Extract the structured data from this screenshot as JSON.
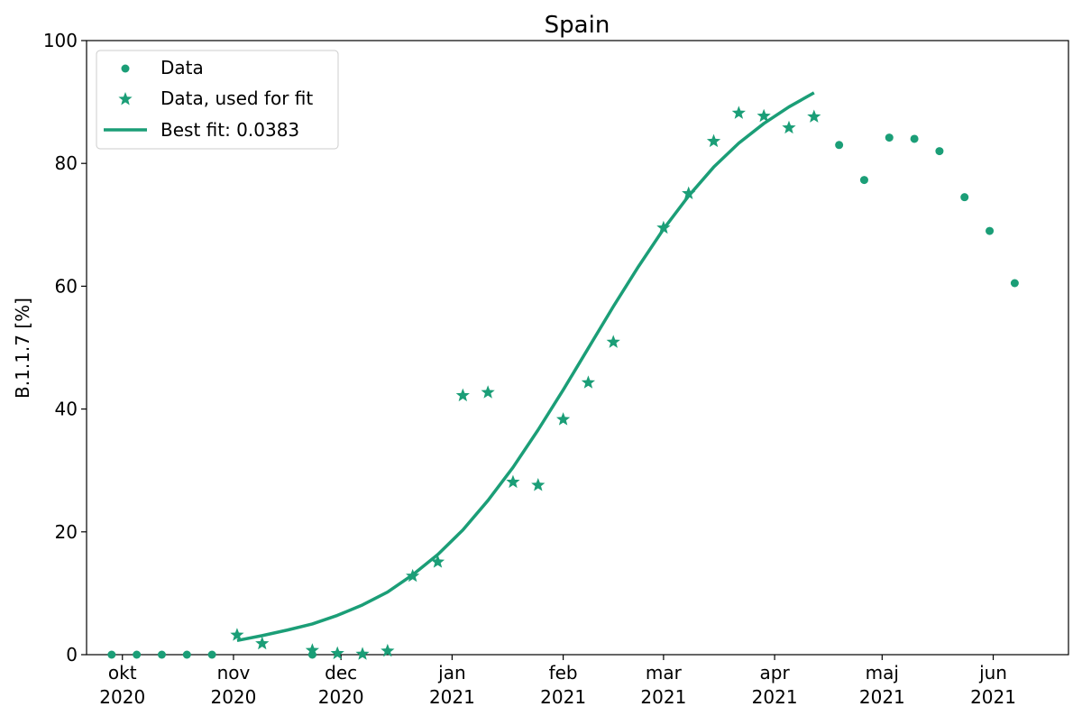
{
  "chart_data": {
    "type": "scatter",
    "title": "Spain",
    "xlabel": "",
    "ylabel": "B.1.1.7 [%]",
    "ylim": [
      0,
      100
    ],
    "xlim": [
      "2020-09-21",
      "2021-06-22"
    ],
    "grid": false,
    "legend_position": "top-left",
    "color": "#1b9e77",
    "x_ticks": [
      {
        "date": "2020-10-01",
        "line1": "okt",
        "line2": "2020"
      },
      {
        "date": "2020-11-01",
        "line1": "nov",
        "line2": "2020"
      },
      {
        "date": "2020-12-01",
        "line1": "dec",
        "line2": "2020"
      },
      {
        "date": "2021-01-01",
        "line1": "jan",
        "line2": "2021"
      },
      {
        "date": "2021-02-01",
        "line1": "feb",
        "line2": "2021"
      },
      {
        "date": "2021-03-01",
        "line1": "mar",
        "line2": "2021"
      },
      {
        "date": "2021-04-01",
        "line1": "apr",
        "line2": "2021"
      },
      {
        "date": "2021-05-01",
        "line1": "maj",
        "line2": "2021"
      },
      {
        "date": "2021-06-01",
        "line1": "jun",
        "line2": "2021"
      }
    ],
    "y_ticks": [
      0,
      20,
      40,
      60,
      80,
      100
    ],
    "series": [
      {
        "name": "Data",
        "marker": "circle",
        "points": [
          {
            "x": "2020-09-28",
            "y": 0
          },
          {
            "x": "2020-10-05",
            "y": 0
          },
          {
            "x": "2020-10-12",
            "y": 0
          },
          {
            "x": "2020-10-19",
            "y": 0
          },
          {
            "x": "2020-10-26",
            "y": 0
          },
          {
            "x": "2020-11-23",
            "y": 0
          },
          {
            "x": "2021-04-19",
            "y": 83
          },
          {
            "x": "2021-04-26",
            "y": 77.3
          },
          {
            "x": "2021-05-03",
            "y": 84.2
          },
          {
            "x": "2021-05-10",
            "y": 84
          },
          {
            "x": "2021-05-17",
            "y": 82
          },
          {
            "x": "2021-05-24",
            "y": 74.5
          },
          {
            "x": "2021-05-31",
            "y": 69
          },
          {
            "x": "2021-06-07",
            "y": 60.5
          }
        ]
      },
      {
        "name": "Data, used for fit",
        "marker": "star",
        "points": [
          {
            "x": "2020-11-02",
            "y": 3.2
          },
          {
            "x": "2020-11-09",
            "y": 1.8
          },
          {
            "x": "2020-11-23",
            "y": 0.7
          },
          {
            "x": "2020-11-30",
            "y": 0.2
          },
          {
            "x": "2020-12-07",
            "y": 0.1
          },
          {
            "x": "2020-12-14",
            "y": 0.6
          },
          {
            "x": "2020-12-21",
            "y": 12.8
          },
          {
            "x": "2020-12-28",
            "y": 15.1
          },
          {
            "x": "2021-01-04",
            "y": 42.2
          },
          {
            "x": "2021-01-11",
            "y": 42.7
          },
          {
            "x": "2021-01-18",
            "y": 28.1
          },
          {
            "x": "2021-01-25",
            "y": 27.6
          },
          {
            "x": "2021-02-01",
            "y": 38.3
          },
          {
            "x": "2021-02-08",
            "y": 44.3
          },
          {
            "x": "2021-02-15",
            "y": 50.9
          },
          {
            "x": "2021-03-01",
            "y": 69.5
          },
          {
            "x": "2021-03-08",
            "y": 75.1
          },
          {
            "x": "2021-03-15",
            "y": 83.6
          },
          {
            "x": "2021-03-22",
            "y": 88.2
          },
          {
            "x": "2021-03-29",
            "y": 87.7
          },
          {
            "x": "2021-04-05",
            "y": 85.8
          },
          {
            "x": "2021-04-12",
            "y": 87.6
          }
        ]
      },
      {
        "name": "Best fit: 0.0383",
        "marker": "line",
        "points": [
          {
            "x": "2020-11-02",
            "y": 2.3
          },
          {
            "x": "2020-11-09",
            "y": 3.1
          },
          {
            "x": "2020-11-16",
            "y": 4.0
          },
          {
            "x": "2020-11-23",
            "y": 5.0
          },
          {
            "x": "2020-11-30",
            "y": 6.4
          },
          {
            "x": "2020-12-07",
            "y": 8.1
          },
          {
            "x": "2020-12-14",
            "y": 10.2
          },
          {
            "x": "2020-12-21",
            "y": 13.0
          },
          {
            "x": "2020-12-28",
            "y": 16.3
          },
          {
            "x": "2021-01-04",
            "y": 20.3
          },
          {
            "x": "2021-01-11",
            "y": 25.1
          },
          {
            "x": "2021-01-18",
            "y": 30.5
          },
          {
            "x": "2021-01-25",
            "y": 36.6
          },
          {
            "x": "2021-02-01",
            "y": 43.1
          },
          {
            "x": "2021-02-08",
            "y": 49.9
          },
          {
            "x": "2021-02-15",
            "y": 56.7
          },
          {
            "x": "2021-02-22",
            "y": 63.2
          },
          {
            "x": "2021-03-01",
            "y": 69.3
          },
          {
            "x": "2021-03-08",
            "y": 74.7
          },
          {
            "x": "2021-03-15",
            "y": 79.4
          },
          {
            "x": "2021-03-22",
            "y": 83.3
          },
          {
            "x": "2021-03-29",
            "y": 86.5
          },
          {
            "x": "2021-04-05",
            "y": 89.2
          },
          {
            "x": "2021-04-12",
            "y": 91.5
          }
        ]
      }
    ]
  }
}
